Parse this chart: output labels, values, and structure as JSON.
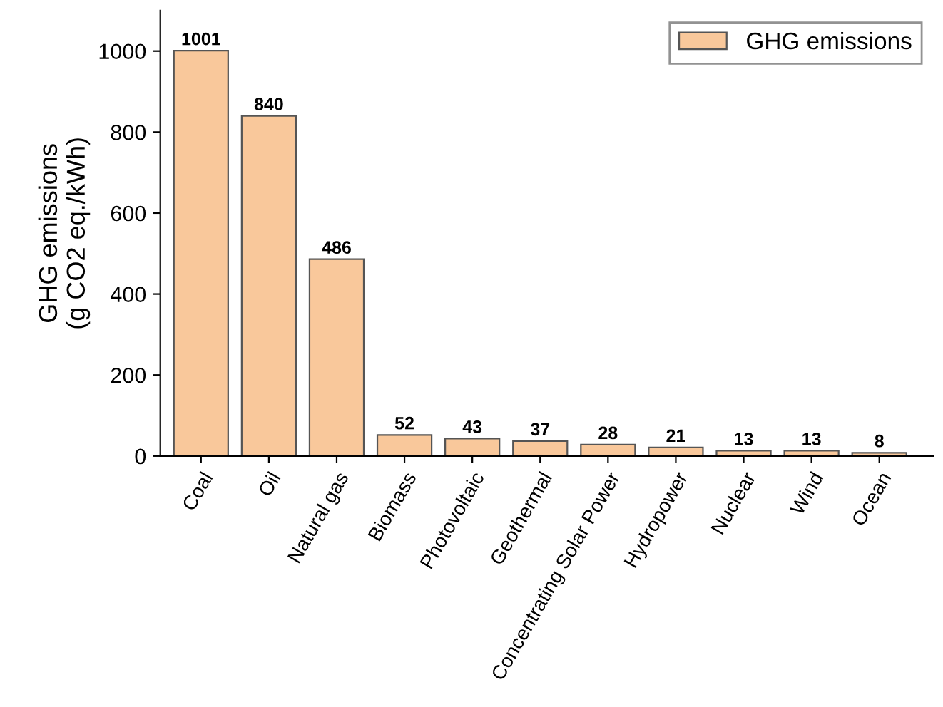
{
  "chart_data": {
    "type": "bar",
    "ylabel": "GHG emissions\n(g CO2 eq./kWh)",
    "categories": [
      "Coal",
      "Oil",
      "Natural gas",
      "Biomass",
      "Photovoltaic",
      "Geothermal",
      "Concentrating Solar Power",
      "Hydropower",
      "Nuclear",
      "Wind",
      "Ocean"
    ],
    "series": [
      {
        "name": "GHG emissions",
        "color": "#f9c89b",
        "values": [
          1001,
          840,
          486,
          52,
          43,
          37,
          28,
          21,
          13,
          13,
          8
        ]
      }
    ],
    "ylim": [
      0,
      1100
    ],
    "yticks": [
      0,
      200,
      400,
      600,
      800,
      1000
    ],
    "data_labels": true,
    "legend": "top right",
    "grid": false
  }
}
